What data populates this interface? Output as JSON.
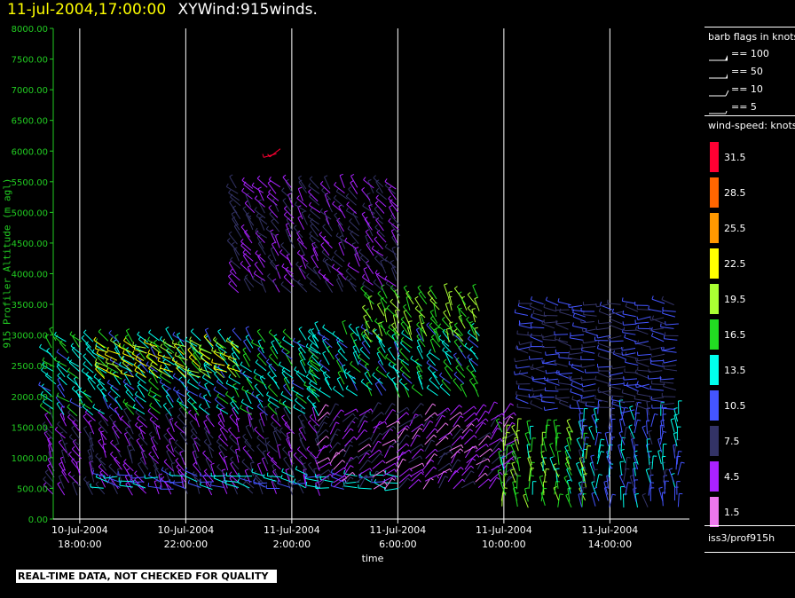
{
  "title": {
    "date": "11-jul-2004,17:00:00",
    "main": "XYWind:915winds."
  },
  "quality_note": "REAL-TIME DATA, NOT CHECKED FOR QUALITY",
  "legend": {
    "barb_title": "barb flags in knots",
    "barb_items": [
      {
        "label": "== 100"
      },
      {
        "label": "== 50"
      },
      {
        "label": "== 10"
      },
      {
        "label": "== 5"
      }
    ],
    "speed_title": "wind-speed: knots",
    "speed_scale": [
      {
        "label": "31.5",
        "color": "#ff0033"
      },
      {
        "label": "28.5",
        "color": "#ff6600"
      },
      {
        "label": "25.5",
        "color": "#ff9900"
      },
      {
        "label": "22.5",
        "color": "#ffff00"
      },
      {
        "label": "19.5",
        "color": "#aaff33"
      },
      {
        "label": "16.5",
        "color": "#22dd22"
      },
      {
        "label": "13.5",
        "color": "#00ffee"
      },
      {
        "label": "10.5",
        "color": "#4455ff"
      },
      {
        "label": "7.5",
        "color": "#333366"
      },
      {
        "label": "4.5",
        "color": "#aa22ff"
      },
      {
        "label": "1.5",
        "color": "#ee77ee"
      }
    ],
    "station": "iss3/prof915h"
  },
  "chart_data": {
    "type": "wind-barb time-height",
    "ylabel": "915 Profiler Altitude (m agl)",
    "xlabel": "time",
    "ylim": [
      0,
      8000
    ],
    "y_ticks": [
      "0.00",
      "500.00",
      "1000.00",
      "1500.00",
      "2000.00",
      "2500.00",
      "3000.00",
      "3500.00",
      "4000.00",
      "4500.00",
      "5000.00",
      "5500.00",
      "6000.00",
      "6500.00",
      "7000.00",
      "7500.00",
      "8000.00"
    ],
    "x_ticks": [
      {
        "date": "10-Jul-2004",
        "time": "18:00:00"
      },
      {
        "date": "10-Jul-2004",
        "time": "22:00:00"
      },
      {
        "date": "11-Jul-2004",
        "time": "2:00:00"
      },
      {
        "date": "11-Jul-2004",
        "time": "6:00:00"
      },
      {
        "date": "11-Jul-2004",
        "time": "10:00:00"
      },
      {
        "date": "11-Jul-2004",
        "time": "14:00:00"
      }
    ],
    "x_range_hours": [
      17.0,
      41.0
    ],
    "tick_hours": [
      18,
      22,
      26,
      30,
      34,
      38
    ],
    "vertical_grid": true,
    "wind_regime": [
      {
        "hours": [
          17.0,
          27.0
        ],
        "alt": [
          400,
          1600
        ],
        "dir_deg": 330,
        "speed_kt": 6
      },
      {
        "hours": [
          17.0,
          27.0
        ],
        "alt": [
          1700,
          2900
        ],
        "dir_deg": 315,
        "speed_kt": 14
      },
      {
        "hours": [
          19.0,
          24.0
        ],
        "alt": [
          2300,
          2800
        ],
        "dir_deg": 300,
        "speed_kt": 21
      },
      {
        "hours": [
          19.0,
          30.0
        ],
        "alt": [
          500,
          750
        ],
        "dir_deg": 280,
        "speed_kt": 12
      },
      {
        "hours": [
          27.0,
          33.0
        ],
        "alt": [
          2000,
          3000
        ],
        "dir_deg": 320,
        "speed_kt": 14
      },
      {
        "hours": [
          29.0,
          33.0
        ],
        "alt": [
          2900,
          3600
        ],
        "dir_deg": 330,
        "speed_kt": 18
      },
      {
        "hours": [
          27.0,
          34.0
        ],
        "alt": [
          500,
          1700
        ],
        "dir_deg": 45,
        "speed_kt": 5
      },
      {
        "hours": [
          34.0,
          37.0
        ],
        "alt": [
          200,
          1400
        ],
        "dir_deg": 350,
        "speed_kt": 17
      },
      {
        "hours": [
          37.0,
          40.5
        ],
        "alt": [
          200,
          1700
        ],
        "dir_deg": 355,
        "speed_kt": 11
      },
      {
        "hours": [
          35.0,
          40.5
        ],
        "alt": [
          1800,
          3500
        ],
        "dir_deg": 275,
        "speed_kt": 9
      },
      {
        "hours": [
          24.0,
          30.0
        ],
        "alt": [
          3700,
          5400
        ],
        "dir_deg": 320,
        "speed_kt": 6
      },
      {
        "hours": [
          25.5,
          25.8
        ],
        "alt": [
          5950,
          6050
        ],
        "dir_deg": 250,
        "speed_kt": 31
      }
    ]
  }
}
